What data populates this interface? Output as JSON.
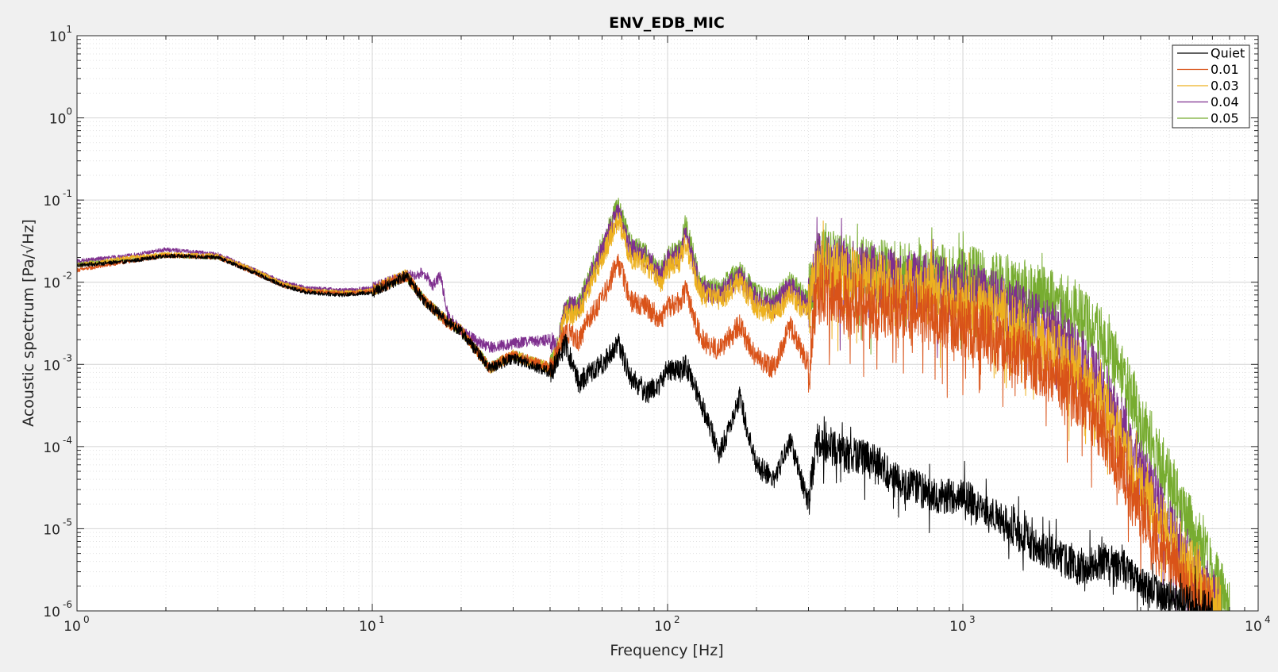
{
  "chart_data": {
    "type": "line",
    "title": "ENV_EDB_MIC",
    "xlabel": "Frequency [Hz]",
    "ylabel": "Acoustic spectrum [Pa/√Hz]",
    "xscale": "log",
    "yscale": "log",
    "xlim": [
      1,
      10000
    ],
    "ylim": [
      1e-06,
      10
    ],
    "grid": true,
    "minor_grid": true,
    "legend_position": "top-right",
    "x_ticks": [
      {
        "base": "10",
        "exp": "0"
      },
      {
        "base": "10",
        "exp": "1"
      },
      {
        "base": "10",
        "exp": "2"
      },
      {
        "base": "10",
        "exp": "3"
      },
      {
        "base": "10",
        "exp": "4"
      }
    ],
    "y_ticks": [
      {
        "base": "10",
        "exp": "-6"
      },
      {
        "base": "10",
        "exp": "-5"
      },
      {
        "base": "10",
        "exp": "-4"
      },
      {
        "base": "10",
        "exp": "-3"
      },
      {
        "base": "10",
        "exp": "-2"
      },
      {
        "base": "10",
        "exp": "-1"
      },
      {
        "base": "10",
        "exp": "0"
      },
      {
        "base": "10",
        "exp": "1"
      }
    ],
    "series": [
      {
        "name": "Quiet",
        "color": "#000000",
        "x": [
          1,
          1.5,
          2,
          3,
          4,
          5,
          6,
          8,
          10,
          13,
          15,
          18,
          20,
          25,
          30,
          40,
          42,
          45,
          50,
          55,
          60,
          68,
          75,
          85,
          95,
          100,
          110,
          115,
          130,
          150,
          175,
          200,
          230,
          260,
          300,
          320,
          400,
          500,
          600,
          800,
          1000,
          1300,
          1600,
          2000,
          2500,
          3000,
          3500,
          4000,
          5000,
          6000,
          7000
        ],
        "y": [
          0.016,
          0.018,
          0.021,
          0.02,
          0.013,
          0.009,
          0.0075,
          0.007,
          0.0075,
          0.012,
          0.006,
          0.0033,
          0.0025,
          0.0009,
          0.0012,
          0.0008,
          0.001,
          0.0018,
          0.0006,
          0.0008,
          0.001,
          0.0018,
          0.0007,
          0.00045,
          0.0006,
          0.0009,
          0.0008,
          0.001,
          0.00035,
          8e-05,
          0.0004,
          6e-05,
          4e-05,
          0.00012,
          2e-05,
          0.00012,
          8e-05,
          7e-05,
          4e-05,
          2.5e-05,
          2.5e-05,
          1.5e-05,
          8e-06,
          5e-06,
          3.3e-06,
          4e-06,
          3.5e-06,
          2e-06,
          1.5e-06,
          1.2e-06,
          1e-06
        ]
      },
      {
        "name": "0.01",
        "color": "#d95319",
        "x": [
          1,
          1.5,
          2,
          3,
          4,
          5,
          6,
          8,
          10,
          13,
          15,
          18,
          20,
          25,
          30,
          40,
          42,
          45,
          50,
          55,
          60,
          68,
          75,
          85,
          95,
          100,
          110,
          115,
          130,
          150,
          175,
          200,
          230,
          260,
          300,
          320,
          400,
          500,
          600,
          800,
          1000,
          1300,
          1600,
          2000,
          2500,
          3000,
          3500,
          4000,
          5000,
          6000,
          7000
        ],
        "y": [
          0.014,
          0.018,
          0.021,
          0.02,
          0.013,
          0.009,
          0.0078,
          0.0072,
          0.0077,
          0.012,
          0.006,
          0.0032,
          0.0026,
          0.0009,
          0.0013,
          0.0009,
          0.0012,
          0.0025,
          0.002,
          0.004,
          0.006,
          0.018,
          0.006,
          0.005,
          0.0035,
          0.005,
          0.006,
          0.008,
          0.002,
          0.0015,
          0.003,
          0.0012,
          0.0009,
          0.003,
          0.001,
          0.008,
          0.006,
          0.005,
          0.005,
          0.004,
          0.003,
          0.002,
          0.0012,
          0.0008,
          0.0004,
          0.00015,
          5e-05,
          1.5e-05,
          4e-06,
          1.5e-06,
          1e-06
        ]
      },
      {
        "name": "0.03",
        "color": "#edb120",
        "x": [
          1,
          1.5,
          2,
          3,
          4,
          5,
          6,
          8,
          10,
          13,
          15,
          18,
          20,
          25,
          30,
          40,
          42,
          45,
          50,
          55,
          60,
          68,
          75,
          85,
          95,
          100,
          110,
          115,
          130,
          150,
          175,
          200,
          230,
          260,
          300,
          320,
          400,
          500,
          600,
          800,
          1000,
          1300,
          1600,
          2000,
          2500,
          3000,
          3500,
          4000,
          5000,
          6000,
          7500
        ],
        "y": [
          0.016,
          0.02,
          0.022,
          0.021,
          0.014,
          0.0095,
          0.008,
          0.0075,
          0.008,
          0.0125,
          0.006,
          0.0033,
          0.0026,
          0.0009,
          0.0013,
          0.0009,
          0.0013,
          0.004,
          0.004,
          0.01,
          0.02,
          0.06,
          0.02,
          0.016,
          0.01,
          0.015,
          0.018,
          0.03,
          0.007,
          0.006,
          0.01,
          0.005,
          0.004,
          0.007,
          0.004,
          0.015,
          0.012,
          0.01,
          0.009,
          0.007,
          0.006,
          0.004,
          0.0025,
          0.0015,
          0.0008,
          0.0003,
          0.0001,
          3e-05,
          8e-06,
          3e-06,
          1e-06
        ]
      },
      {
        "name": "0.04",
        "color": "#7e2f8e",
        "x": [
          1,
          1.5,
          2,
          3,
          4,
          5,
          6,
          8,
          10,
          13,
          15,
          16,
          17,
          18,
          20,
          25,
          30,
          40,
          42,
          45,
          50,
          55,
          60,
          68,
          75,
          85,
          95,
          100,
          110,
          115,
          130,
          150,
          175,
          200,
          230,
          260,
          300,
          320,
          400,
          500,
          600,
          800,
          1000,
          1300,
          1600,
          2000,
          2500,
          3000,
          3500,
          4000,
          5000,
          6000,
          7500
        ],
        "y": [
          0.018,
          0.021,
          0.025,
          0.022,
          0.014,
          0.01,
          0.0085,
          0.008,
          0.0085,
          0.012,
          0.013,
          0.009,
          0.012,
          0.004,
          0.0025,
          0.0016,
          0.0018,
          0.002,
          0.0015,
          0.005,
          0.005,
          0.012,
          0.025,
          0.075,
          0.025,
          0.02,
          0.012,
          0.018,
          0.022,
          0.04,
          0.008,
          0.007,
          0.012,
          0.006,
          0.005,
          0.009,
          0.005,
          0.018,
          0.014,
          0.012,
          0.011,
          0.009,
          0.008,
          0.006,
          0.004,
          0.0025,
          0.0012,
          0.0005,
          0.00015,
          5e-05,
          1e-05,
          3e-06,
          1e-06
        ]
      },
      {
        "name": "0.05",
        "color": "#77ac30",
        "x": [
          1,
          1.5,
          2,
          3,
          4,
          5,
          6,
          8,
          10,
          13,
          15,
          18,
          20,
          25,
          30,
          40,
          42,
          45,
          50,
          55,
          60,
          68,
          75,
          85,
          95,
          100,
          110,
          115,
          130,
          150,
          175,
          200,
          230,
          260,
          300,
          320,
          400,
          500,
          600,
          800,
          1000,
          1300,
          1600,
          2000,
          2500,
          3000,
          3500,
          4000,
          5000,
          6000,
          7000,
          8000
        ],
        "y": [
          0.017,
          0.019,
          0.021,
          0.02,
          0.014,
          0.0095,
          0.0082,
          0.0076,
          0.008,
          0.012,
          0.006,
          0.0033,
          0.0026,
          0.0009,
          0.0013,
          0.0009,
          0.0014,
          0.005,
          0.005,
          0.013,
          0.028,
          0.085,
          0.028,
          0.022,
          0.013,
          0.02,
          0.025,
          0.05,
          0.009,
          0.008,
          0.014,
          0.007,
          0.006,
          0.01,
          0.006,
          0.02,
          0.016,
          0.014,
          0.013,
          0.012,
          0.012,
          0.01,
          0.008,
          0.006,
          0.004,
          0.002,
          0.0007,
          0.0002,
          4e-05,
          1e-05,
          3e-06,
          1e-06
        ]
      }
    ]
  }
}
